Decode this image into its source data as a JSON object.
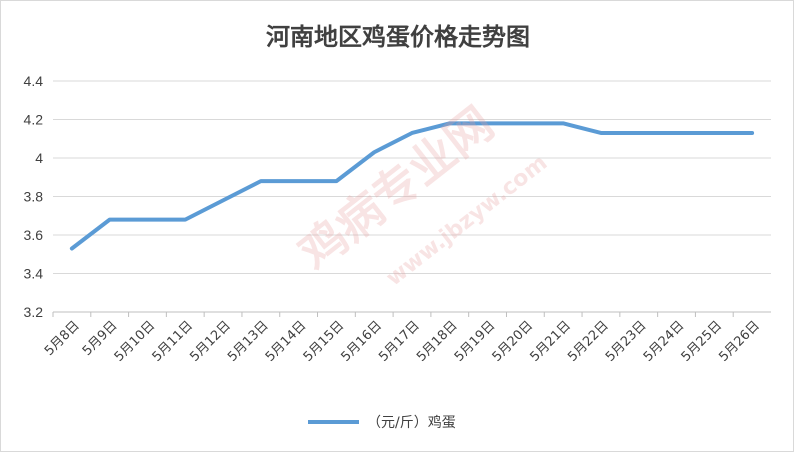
{
  "chart_data": {
    "type": "line",
    "title": "河南地区鸡蛋价格走势图",
    "categories": [
      "5月8日",
      "5月9日",
      "5月10日",
      "5月11日",
      "5月12日",
      "5月13日",
      "5月14日",
      "5月15日",
      "5月16日",
      "5月17日",
      "5月18日",
      "5月19日",
      "5月20日",
      "5月21日",
      "5月22日",
      "5月23日",
      "5月24日",
      "5月25日",
      "5月26日"
    ],
    "series": [
      {
        "name": "（元/斤）鸡蛋",
        "values": [
          3.53,
          3.68,
          3.68,
          3.68,
          3.78,
          3.88,
          3.88,
          3.88,
          4.03,
          4.13,
          4.18,
          4.18,
          4.18,
          4.18,
          4.13,
          4.13,
          4.13,
          4.13,
          4.13
        ],
        "color": "#5b9bd5"
      }
    ],
    "ylim": [
      3.2,
      4.4
    ],
    "yticks": [
      "3.2",
      "3.4",
      "3.6",
      "3.8",
      "4",
      "4.2",
      "4.4"
    ],
    "grid": true,
    "legend_position": "bottom"
  },
  "watermark": {
    "text": "鸡病专业网",
    "url": "www.jbzyw.com"
  }
}
